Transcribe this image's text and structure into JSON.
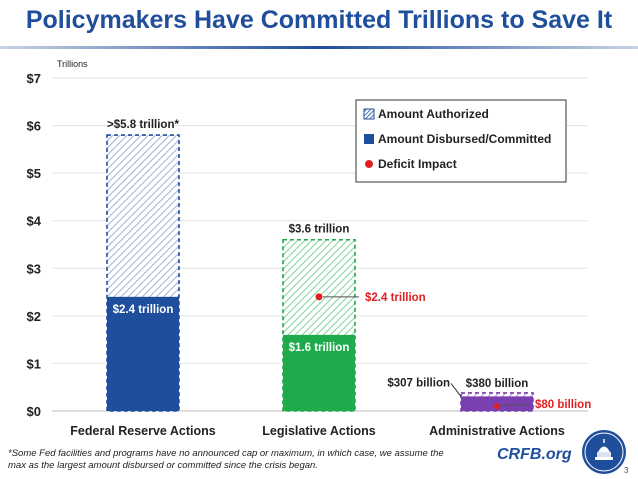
{
  "header": {
    "title": "Policymakers Have Committed Trillions to Save It"
  },
  "chart_data": {
    "type": "bar",
    "unit_label": "Trillions",
    "ylim": [
      0,
      7
    ],
    "yticks": [
      {
        "value": 0,
        "label": "$0"
      },
      {
        "value": 1,
        "label": "$1"
      },
      {
        "value": 2,
        "label": "$2"
      },
      {
        "value": 3,
        "label": "$3"
      },
      {
        "value": 4,
        "label": "$4"
      },
      {
        "value": 5,
        "label": "$5"
      },
      {
        "value": 6,
        "label": "$6"
      },
      {
        "value": 7,
        "label": "$7"
      }
    ],
    "grid": true,
    "legend_position": "top-right",
    "categories": [
      "Federal Reserve Actions",
      "Legislative Actions",
      "Administrative Actions"
    ],
    "series": [
      {
        "name": "Amount Authorized",
        "style": "hatched",
        "values": [
          5.8,
          3.6,
          0.38
        ]
      },
      {
        "name": "Amount Disbursed/Committed",
        "style": "solid",
        "values": [
          2.4,
          1.6,
          0.307
        ]
      },
      {
        "name": "Deficit Impact",
        "style": "dot",
        "values": [
          null,
          2.4,
          0.08
        ]
      }
    ],
    "data_labels": {
      "authorized": [
        ">$5.8 trillion*",
        "$3.6 trillion",
        "$380 billion"
      ],
      "disbursed": [
        "$2.4 trillion",
        "$1.6 trillion",
        "$307 billion"
      ],
      "deficit": [
        "",
        "$2.4 trillion",
        "$80 billion"
      ]
    },
    "colors": {
      "fed": "#1f4e9c",
      "legislative": "#1faa4b",
      "administrative": "#7a3fb0",
      "deficit": "#e02020",
      "legend_hatch": "#1f4e9c"
    }
  },
  "footer": {
    "footnote_line1": "*Some Fed facilities and programs have no announced cap or maximum, in which case, we assume the",
    "footnote_line2": "max as the largest amount disbursed or committed since the crisis began.",
    "site": "CRFB.org",
    "page_number": "3",
    "logo": "capitol-seal-icon"
  }
}
